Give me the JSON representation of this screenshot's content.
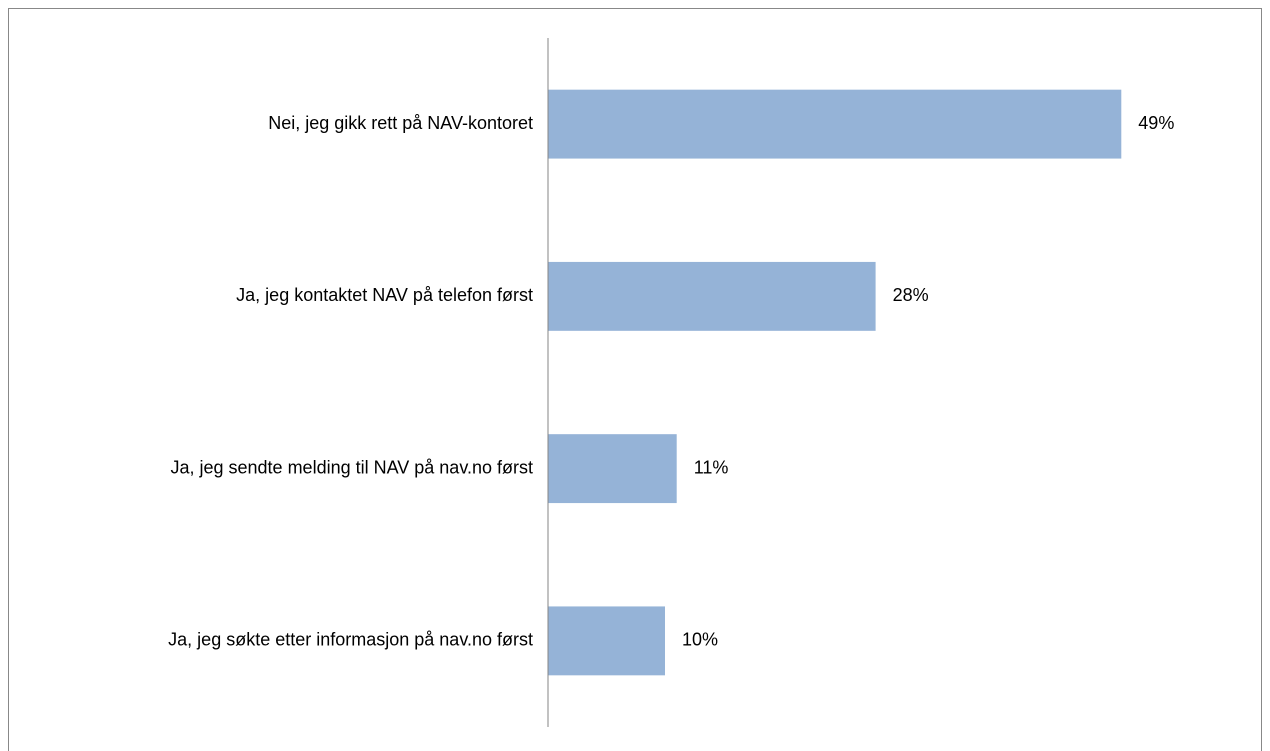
{
  "chart_data": {
    "type": "hbar",
    "categories": [
      "Nei, jeg gikk rett på NAV-kontoret",
      "Ja, jeg kontaktet NAV på telefon først",
      "Ja, jeg sendte melding til NAV på nav.no først",
      "Ja, jeg søkte etter informasjon på nav.no først"
    ],
    "values": [
      49,
      28,
      11,
      10
    ],
    "value_labels": [
      "49%",
      "28%",
      "11%",
      "10%"
    ],
    "color": "#95b3d7",
    "xlim": [
      0,
      60
    ]
  }
}
